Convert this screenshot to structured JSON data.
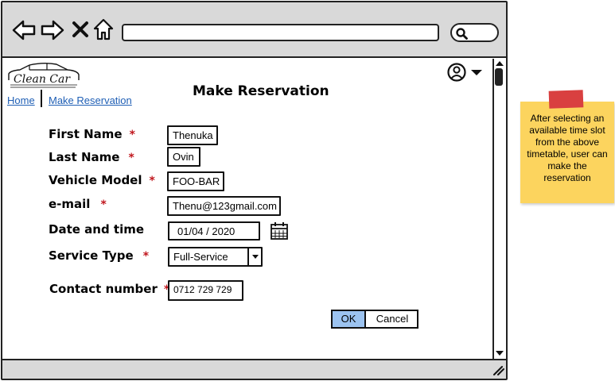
{
  "browser": {
    "url": "",
    "search": ""
  },
  "logo": {
    "text": "Clean Car"
  },
  "breadcrumb": {
    "home": "Home",
    "current": "Make Reservation"
  },
  "page": {
    "title": "Make Reservation"
  },
  "form": {
    "required_marker": "*",
    "first_name": {
      "label": "First Name",
      "value": "Thenuka"
    },
    "last_name": {
      "label": "Last Name",
      "value": "Ovin"
    },
    "vehicle_model": {
      "label": "Vehicle Model",
      "value": "FOO-BAR"
    },
    "email": {
      "label": "e-mail",
      "value": "Thenu@123gmail.com"
    },
    "date_time": {
      "label": "Date and time",
      "value": "01/04  / 2020"
    },
    "service_type": {
      "label": "Service Type",
      "value": "Full-Service"
    },
    "contact": {
      "label": "Contact number",
      "value": "0712 729 729"
    },
    "ok_label": "OK",
    "cancel_label": "Cancel"
  },
  "note": {
    "text": "After selecting an available time slot from the above timetable, user can make the reservation"
  },
  "colors": {
    "chrome": "#d9d9d9",
    "link": "#1f5fb5",
    "ok_button": "#9cc3f0",
    "required": "#c0161d",
    "note": "#fcd45e",
    "note_tape": "#d94040"
  },
  "icons": [
    "back-arrow-icon",
    "forward-arrow-icon",
    "close-icon",
    "home-icon",
    "search-icon",
    "user-icon",
    "chevron-down-icon",
    "calendar-icon",
    "resize-grip-icon"
  ]
}
